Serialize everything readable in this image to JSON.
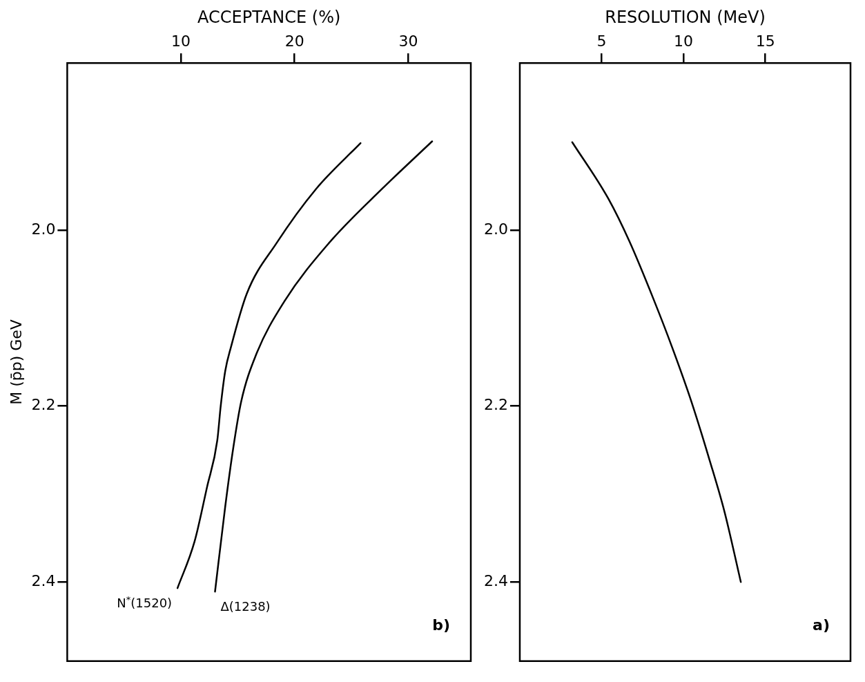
{
  "chart_data": [
    {
      "type": "line",
      "xlabel": "ACCEPTANCE (%)",
      "ylabel": "M (p̄p) GeV",
      "xlim": [
        0,
        35.5
      ],
      "xticks": [
        10,
        20,
        30
      ],
      "ylim": [
        2.49,
        1.81
      ],
      "yticks": [
        {
          "value": 2.0,
          "label": "2.0"
        },
        {
          "value": 2.2,
          "label": "2.2"
        },
        {
          "value": 2.4,
          "label": "2.4"
        }
      ],
      "grid": false,
      "legend": false,
      "marker": "none",
      "line_style": "solid",
      "annotations": [
        "b)"
      ],
      "series": [
        {
          "name": "Δ(1238)",
          "color": "#000000",
          "x": [
            32.1,
            27.7,
            23.0,
            19.1,
            16.6,
            15.3,
            14.6,
            13.9,
            13.0
          ],
          "values": [
            1.899,
            1.953,
            2.015,
            2.081,
            2.142,
            2.195,
            2.248,
            2.314,
            2.411
          ]
        },
        {
          "name": "N$^{*}$(1520)",
          "color": "#000000",
          "x": [
            25.8,
            21.9,
            18.4,
            15.8,
            14.4,
            13.9,
            13.5,
            13.2,
            12.3,
            11.2,
            9.7
          ],
          "values": [
            1.901,
            1.953,
            2.015,
            2.072,
            2.133,
            2.16,
            2.2,
            2.239,
            2.292,
            2.354,
            2.407
          ]
        }
      ]
    },
    {
      "type": "line",
      "xlabel": "RESOLUTION (MeV)",
      "xlim": [
        0,
        20.2
      ],
      "xticks": [
        5,
        10,
        15
      ],
      "ylim": [
        2.49,
        1.81
      ],
      "yticks": [
        {
          "value": 2.0,
          "label": "2.0"
        },
        {
          "value": 2.2,
          "label": "2.2"
        },
        {
          "value": 2.4,
          "label": "2.4"
        }
      ],
      "grid": false,
      "legend": false,
      "marker": "none",
      "line_style": "solid",
      "annotations": [
        "a)"
      ],
      "series": [
        {
          "color": "#000000",
          "x": [
            3.2,
            5.4,
            6.7,
            8.2,
            9.3,
            10.5,
            11.6,
            12.5,
            13.5
          ],
          "values": [
            1.9,
            1.964,
            2.013,
            2.08,
            2.133,
            2.196,
            2.262,
            2.32,
            2.4
          ]
        }
      ]
    }
  ]
}
